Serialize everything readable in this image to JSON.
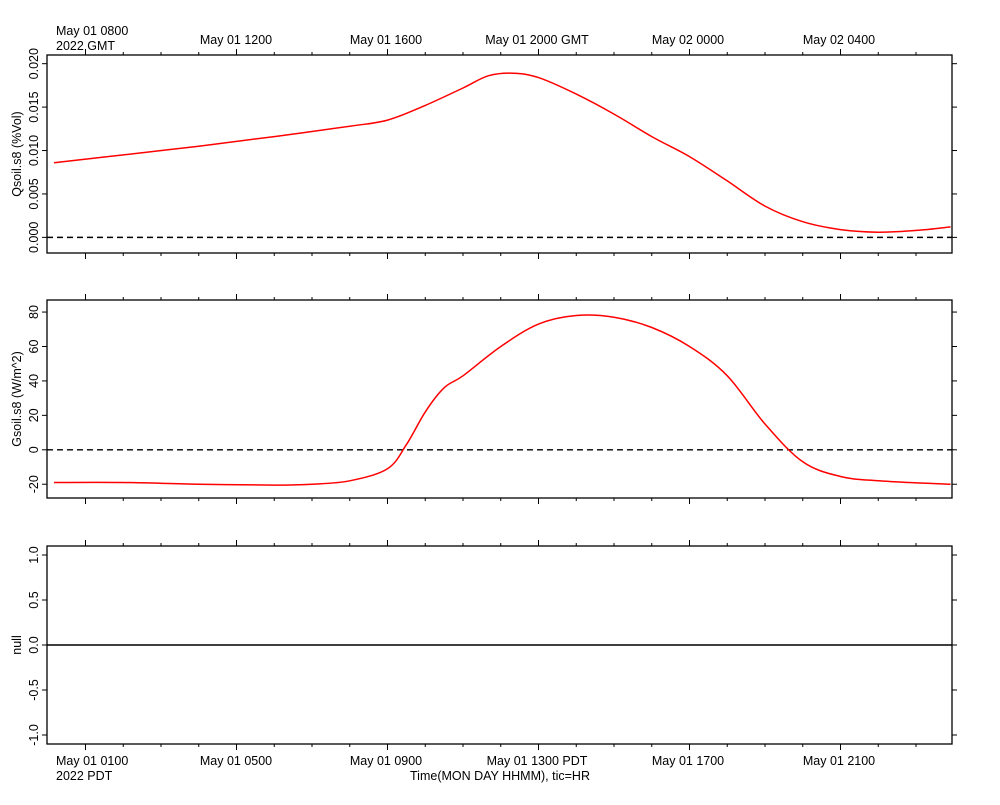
{
  "top_axis": {
    "labels": [
      "May 01 0800",
      "May 01 1200",
      "May 01 1600",
      "May 01 2000 GMT",
      "May 02 0000",
      "May 02 0400"
    ],
    "year_label": "2022 GMT"
  },
  "bottom_axis": {
    "labels": [
      "May 01 0100",
      "May 01 0500",
      "May 01 0900",
      "May 01 1300 PDT",
      "May 01 1700",
      "May 01 2100"
    ],
    "year_label": "2022 PDT",
    "title": "Time(MON DAY HHMM), tic=HR"
  },
  "colors": {
    "series": "#ff0000",
    "axes": "#000000"
  },
  "chart_data": [
    {
      "type": "line",
      "ylabel": "Qsoil.s8 (%Vol)",
      "ylim": [
        -0.0018,
        0.021
      ],
      "yticks": [
        "0.000",
        "0.005",
        "0.010",
        "0.015",
        "0.020"
      ],
      "yticks_values": [
        0,
        0.005,
        0.01,
        0.015,
        0.02
      ],
      "reference_line": 0,
      "x": [
        "2022-05-01 07:10 GMT",
        "2022-05-01 09:00 GMT",
        "2022-05-01 11:00 GMT",
        "2022-05-01 13:00 GMT",
        "2022-05-01 15:00 GMT",
        "2022-05-01 16:00 GMT",
        "2022-05-01 17:00 GMT",
        "2022-05-01 18:00 GMT",
        "2022-05-01 18:40 GMT",
        "2022-05-01 19:20 GMT",
        "2022-05-01 20:00 GMT",
        "2022-05-01 21:00 GMT",
        "2022-05-01 22:00 GMT",
        "2022-05-01 23:00 GMT",
        "2022-05-02 00:00 GMT",
        "2022-05-02 01:00 GMT",
        "2022-05-02 02:00 GMT",
        "2022-05-02 03:00 GMT",
        "2022-05-02 04:00 GMT",
        "2022-05-02 05:00 GMT",
        "2022-05-02 06:00 GMT",
        "2022-05-02 06:55 GMT"
      ],
      "series": [
        {
          "values": [
            0.0086,
            0.0095,
            0.0105,
            0.0116,
            0.0128,
            0.0135,
            0.0152,
            0.0172,
            0.0186,
            0.0189,
            0.0184,
            0.0165,
            0.0142,
            0.0116,
            0.0093,
            0.0065,
            0.0036,
            0.0018,
            0.0009,
            0.0006,
            0.0008,
            0.0012
          ]
        }
      ]
    },
    {
      "type": "line",
      "ylabel": "Gsoil.s8 (W/m^2)",
      "ylim": [
        -28,
        87
      ],
      "yticks": [
        "-20",
        "0",
        "20",
        "40",
        "60",
        "80"
      ],
      "yticks_values": [
        -20,
        0,
        20,
        40,
        60,
        80
      ],
      "reference_line": 0,
      "x": [
        "2022-05-01 00:10 PDT",
        "2022-05-01 02:00 PDT",
        "2022-05-01 04:00 PDT",
        "2022-05-01 06:00 PDT",
        "2022-05-01 07:00 PDT",
        "2022-05-01 08:00 PDT",
        "2022-05-01 09:00 PDT",
        "2022-05-01 09:30 PDT",
        "2022-05-01 10:00 PDT",
        "2022-05-01 10:30 PDT",
        "2022-05-01 11:00 PDT",
        "2022-05-01 12:00 PDT",
        "2022-05-01 13:00 PDT",
        "2022-05-01 14:00 PDT",
        "2022-05-01 15:00 PDT",
        "2022-05-01 16:00 PDT",
        "2022-05-01 17:00 PDT",
        "2022-05-01 18:00 PDT",
        "2022-05-01 19:00 PDT",
        "2022-05-01 20:00 PDT",
        "2022-05-01 21:00 PDT",
        "2022-05-01 22:00 PDT",
        "2022-05-01 23:55 PDT"
      ],
      "series": [
        {
          "values": [
            -19,
            -19,
            -20,
            -20.5,
            -20,
            -18,
            -11,
            3,
            22,
            36,
            43,
            60,
            73,
            78,
            77,
            71,
            60,
            43,
            15,
            -7,
            -15.5,
            -18,
            -20
          ]
        }
      ]
    },
    {
      "type": "line",
      "ylabel": "null",
      "ylim": [
        -1.1,
        1.1
      ],
      "yticks": [
        "-1.0",
        "-0.5",
        "0.0",
        "0.5",
        "1.0"
      ],
      "yticks_values": [
        -1,
        -0.5,
        0,
        0.5,
        1
      ],
      "reference_line": 0,
      "series": []
    }
  ]
}
